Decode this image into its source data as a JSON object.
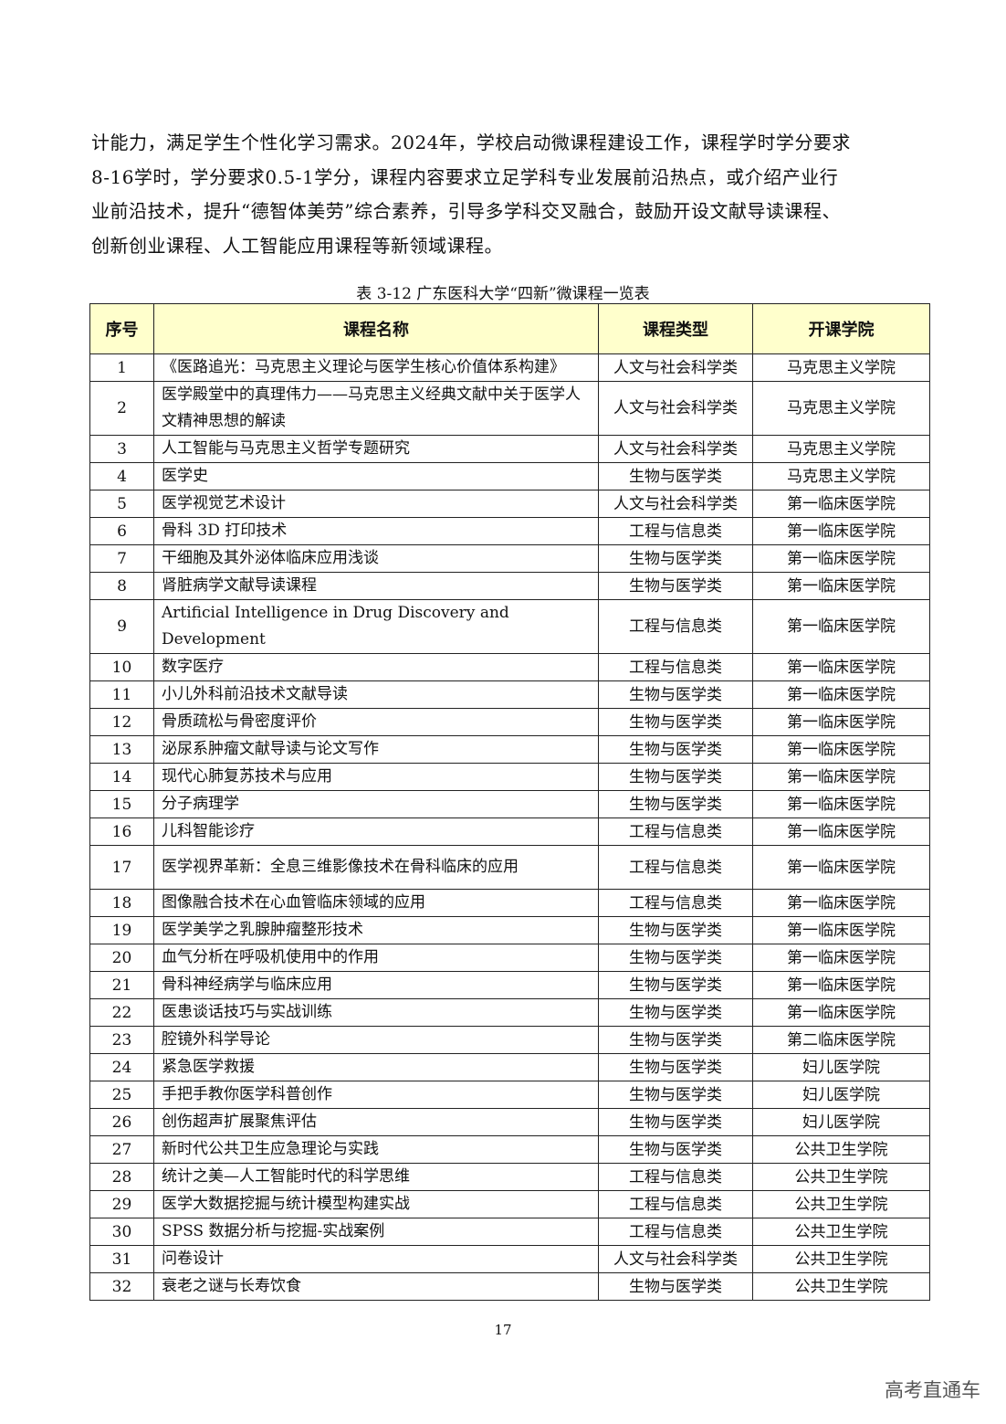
{
  "paragraph": [
    "计能力，满足学生个性化学习需求。2024年，学校启动微课程建设工作，课程学时学分要求",
    "8-16学时，学分要求0.5-1学分，课程内容要求立足学科专业发展前沿热点，或介绍产业行",
    "业前沿技术，提升“德智体美劳”综合素养，引导多学科交叉融合，鼓励开设文献导读课程、",
    "创新创业课程、人工智能应用课程等新领域课程。"
  ],
  "table": {
    "caption": "表 3-12 广东医科大学“四新”微课程一览表",
    "header_bg": "#FFFFCC",
    "headers": [
      "序号",
      "课程名称",
      "课程类型",
      "开课学院"
    ],
    "rows": [
      [
        "1",
        "《医路追光：马克思主义理论与医学生核心价值体系构建》",
        "人文与社会科学类",
        "马克思主义学院"
      ],
      [
        "2",
        "医学殿堂中的真理伟力——马克思主义经典文献中关于医学人文精神思想的解读",
        "人文与社会科学类",
        "马克思主义学院"
      ],
      [
        "3",
        "人工智能与马克思主义哲学专题研究",
        "人文与社会科学类",
        "马克思主义学院"
      ],
      [
        "4",
        "医学史",
        "生物与医学类",
        "马克思主义学院"
      ],
      [
        "5",
        "医学视觉艺术设计",
        "人文与社会科学类",
        "第一临床医学院"
      ],
      [
        "6",
        "骨科 3D 打印技术",
        "工程与信息类",
        "第一临床医学院"
      ],
      [
        "7",
        "干细胞及其外泌体临床应用浅谈",
        "生物与医学类",
        "第一临床医学院"
      ],
      [
        "8",
        "肾脏病学文献导读课程",
        "生物与医学类",
        "第一临床医学院"
      ],
      [
        "9",
        "Artificial Intelligence in Drug Discovery and Development",
        "工程与信息类",
        "第一临床医学院"
      ],
      [
        "10",
        "数字医疗",
        "工程与信息类",
        "第一临床医学院"
      ],
      [
        "11",
        "小儿外科前沿技术文献导读",
        "生物与医学类",
        "第一临床医学院"
      ],
      [
        "12",
        "骨质疏松与骨密度评价",
        "生物与医学类",
        "第一临床医学院"
      ],
      [
        "13",
        "泌尿系肿瘤文献导读与论文写作",
        "生物与医学类",
        "第一临床医学院"
      ],
      [
        "14",
        "现代心肺复苏技术与应用",
        "生物与医学类",
        "第一临床医学院"
      ],
      [
        "15",
        "分子病理学",
        "生物与医学类",
        "第一临床医学院"
      ],
      [
        "16",
        "儿科智能诊疗",
        "工程与信息类",
        "第一临床医学院"
      ],
      [
        "17",
        "医学视界革新：全息三维影像技术在骨科临床的应用",
        "工程与信息类",
        "第一临床医学院"
      ],
      [
        "18",
        "图像融合技术在心血管临床领域的应用",
        "工程与信息类",
        "第一临床医学院"
      ],
      [
        "19",
        "医学美学之乳腺肿瘤整形技术",
        "生物与医学类",
        "第一临床医学院"
      ],
      [
        "20",
        "血气分析在呼吸机使用中的作用",
        "生物与医学类",
        "第一临床医学院"
      ],
      [
        "21",
        "骨科神经病学与临床应用",
        "生物与医学类",
        "第一临床医学院"
      ],
      [
        "22",
        "医患谈话技巧与实战训练",
        "生物与医学类",
        "第一临床医学院"
      ],
      [
        "23",
        "腔镜外科学导论",
        "生物与医学类",
        "第二临床医学院"
      ],
      [
        "24",
        "紧急医学救援",
        "生物与医学类",
        "妇儿医学院"
      ],
      [
        "25",
        "手把手教你医学科普创作",
        "生物与医学类",
        "妇儿医学院"
      ],
      [
        "26",
        "创伤超声扩展聚焦评估",
        "生物与医学类",
        "妇儿医学院"
      ],
      [
        "27",
        "新时代公共卫生应急理论与实践",
        "生物与医学类",
        "公共卫生学院"
      ],
      [
        "28",
        "统计之美—人工智能时代的科学思维",
        "工程与信息类",
        "公共卫生学院"
      ],
      [
        "29",
        "医学大数据挖掘与统计模型构建实战",
        "工程与信息类",
        "公共卫生学院"
      ],
      [
        "30",
        "SPSS 数据分析与挖掘-实战案例",
        "工程与信息类",
        "公共卫生学院"
      ],
      [
        "31",
        "问卷设计",
        "人文与社会科学类",
        "公共卫生学院"
      ],
      [
        "32",
        "衰老之谜与长寿饮食",
        "生物与医学类",
        "公共卫生学院"
      ]
    ]
  },
  "page_number": "17",
  "watermark": "高考直通车"
}
